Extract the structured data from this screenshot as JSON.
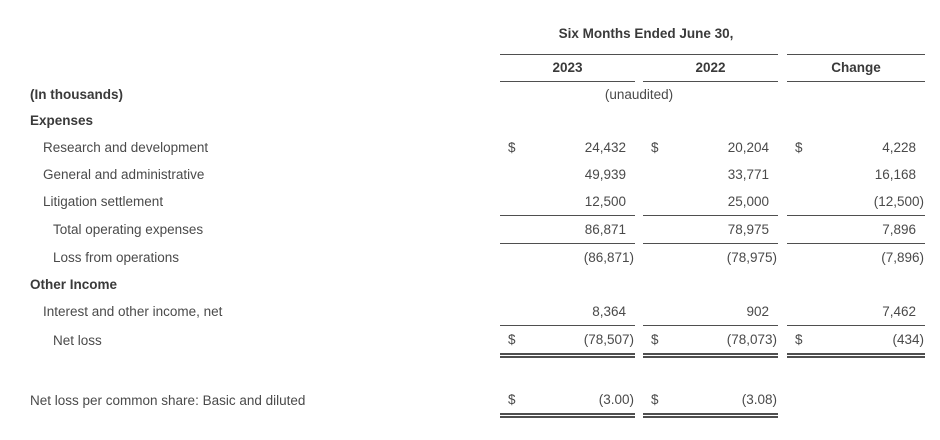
{
  "colors": {
    "background": "#ffffff",
    "text": "#4a4a4a",
    "bold_text": "#3a3a3a",
    "rule": "#4f4f4f"
  },
  "header": {
    "group_title": "Six Months Ended June 30,",
    "col_2023": "2023",
    "col_2022": "2022",
    "col_change": "Change",
    "unaudited_note": "(unaudited)",
    "units_note": "(In thousands)"
  },
  "rows": [
    {
      "label": "Expenses"
    },
    {
      "label": "Research and development",
      "d1": "$",
      "v1": "24,432",
      "d2": "$",
      "v2": "20,204",
      "d3": "$",
      "v3": "4,228"
    },
    {
      "label": "General and administrative",
      "v1": "49,939",
      "v2": "33,771",
      "v3": "16,168"
    },
    {
      "label": "Litigation settlement",
      "v1": "12,500",
      "v2": "25,000",
      "v3": "(12,500)"
    },
    {
      "label": "Total operating expenses",
      "v1": "86,871",
      "v2": "78,975",
      "v3": "7,896"
    },
    {
      "label": "Loss from operations",
      "v1": "(86,871)",
      "v2": "(78,975)",
      "v3": "(7,896)"
    },
    {
      "label": "Other Income"
    },
    {
      "label": "Interest and other income, net",
      "v1": "8,364",
      "v2": "902",
      "v3": "7,462"
    },
    {
      "label": "Net loss",
      "d1": "$",
      "v1": "(78,507)",
      "d2": "$",
      "v2": "(78,073)",
      "d3": "$",
      "v3": "(434)"
    },
    {
      "label": "Net loss per common share: Basic and diluted",
      "d1": "$",
      "v1": "(3.00)",
      "d2": "$",
      "v2": "(3.08)"
    }
  ]
}
